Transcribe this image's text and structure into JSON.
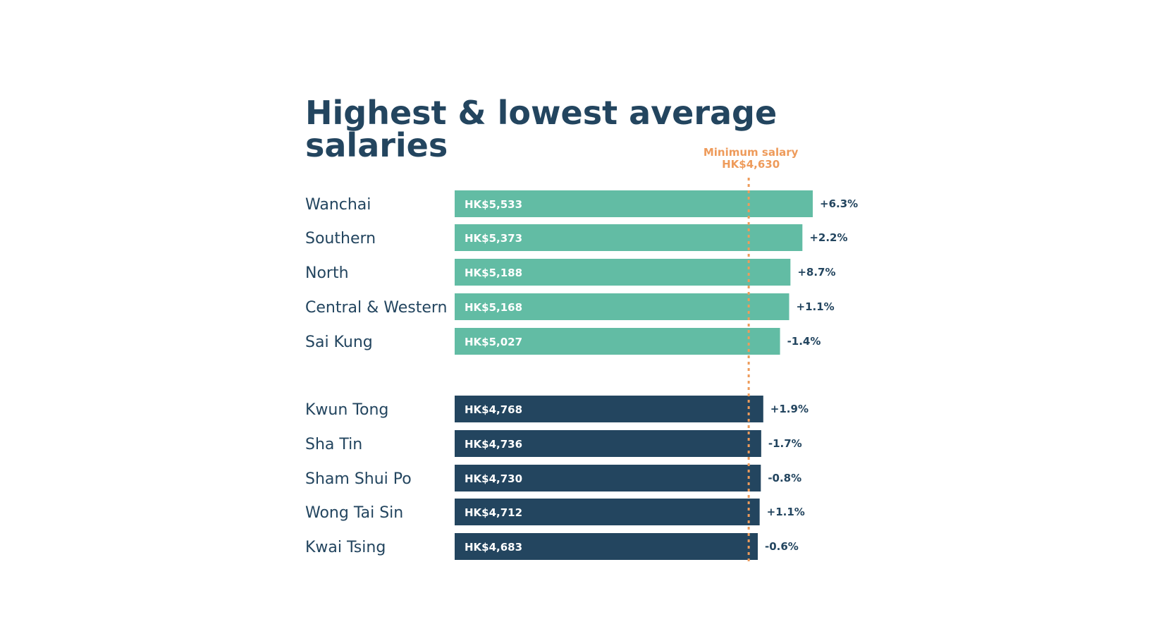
{
  "chart_data": {
    "type": "bar",
    "orientation": "horizontal",
    "title_lines": [
      "Highest & lowest average",
      "salaries"
    ],
    "unit_prefix": "HK$",
    "reference_line": {
      "label": "Minimum salary",
      "value_label": "HK$4,630",
      "value": 4630,
      "color": "#ee9b5b"
    },
    "groups": [
      {
        "name": "highest",
        "color": "#62bca4",
        "items": [
          {
            "category": "Wanchai",
            "value": 5533,
            "value_label": "HK$5,533",
            "change": "+6.3%"
          },
          {
            "category": "Southern",
            "value": 5373,
            "value_label": "HK$5,373",
            "change": "+2.2%"
          },
          {
            "category": "North",
            "value": 5188,
            "value_label": "HK$5,188",
            "change": "+8.7%"
          },
          {
            "category": "Central & Western",
            "value": 5168,
            "value_label": "HK$5,168",
            "change": "+1.1%"
          },
          {
            "category": "Sai Kung",
            "value": 5027,
            "value_label": "HK$5,027",
            "change": "-1.4%"
          }
        ]
      },
      {
        "name": "lowest",
        "color": "#23455f",
        "items": [
          {
            "category": "Kwun Tong",
            "value": 4768,
            "value_label": "HK$4,768",
            "change": "+1.9%"
          },
          {
            "category": "Sha Tin",
            "value": 4736,
            "value_label": "HK$4,736",
            "change": "-1.7%"
          },
          {
            "category": "Sham Shui Po",
            "value": 4730,
            "value_label": "HK$4,730",
            "change": "-0.8%"
          },
          {
            "category": "Wong Tai Sin",
            "value": 4712,
            "value_label": "HK$4,712",
            "change": "+1.1%"
          },
          {
            "category": "Kwai Tsing",
            "value": 4683,
            "value_label": "HK$4,683",
            "change": "-0.6%"
          }
        ]
      }
    ],
    "grid": false,
    "legend": "none"
  }
}
